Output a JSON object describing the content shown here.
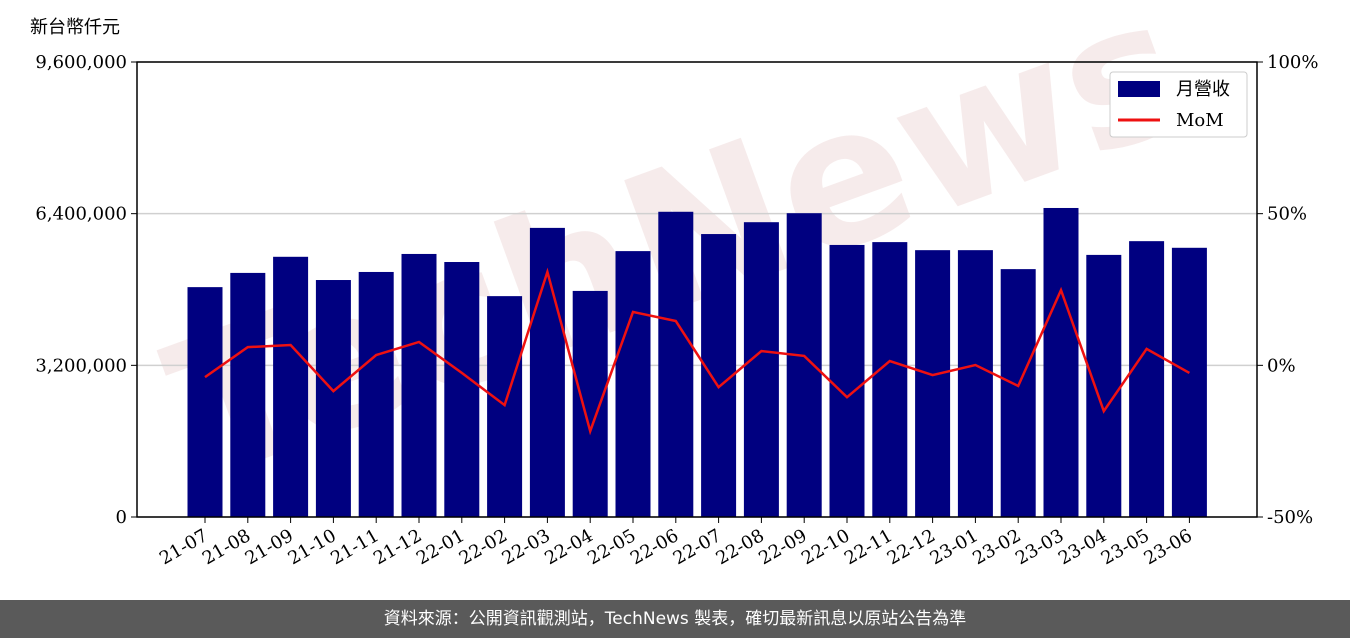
{
  "chart_data": {
    "type": "bar_line",
    "y_axis_label": "新台幣仟元",
    "watermark": "TechNews",
    "categories": [
      "21-07",
      "21-08",
      "21-09",
      "21-10",
      "21-11",
      "21-12",
      "22-01",
      "22-02",
      "22-03",
      "22-04",
      "22-05",
      "22-06",
      "22-07",
      "22-08",
      "22-09",
      "22-10",
      "22-11",
      "22-12",
      "23-01",
      "23-02",
      "23-03",
      "23-04",
      "23-05",
      "23-06"
    ],
    "series": [
      {
        "name": "月營收",
        "type": "bar",
        "color": "#000080",
        "values": [
          4850000,
          5150000,
          5490000,
          5000000,
          5170000,
          5550000,
          5380000,
          4660000,
          6100000,
          4770000,
          5610000,
          6440000,
          5970000,
          6220000,
          6410000,
          5740000,
          5800000,
          5630000,
          5630000,
          5230000,
          6520000,
          5530000,
          5820000,
          5680000
        ]
      },
      {
        "name": "MoM",
        "type": "line",
        "axis": "y2",
        "color": "#ee1111",
        "values": [
          -3.9,
          6.0,
          6.7,
          -8.5,
          3.4,
          7.7,
          -2.5,
          -13.1,
          30.8,
          -21.7,
          17.6,
          14.6,
          -7.2,
          4.7,
          3.1,
          -10.5,
          1.4,
          -3.2,
          0.1,
          -6.8,
          24.8,
          -15.1,
          5.4,
          -2.5
        ]
      }
    ],
    "ylim": [
      0,
      9600000
    ],
    "yticks": [
      0,
      {
        "value": 3200000,
        "label": "3,200,000"
      },
      {
        "value": 6400000,
        "label": "6,400,000"
      },
      {
        "value": 9600000,
        "label": "9,600,000"
      }
    ],
    "y2lim": [
      -50,
      100
    ],
    "y2ticks": [
      {
        "value": -50,
        "label": "-50%"
      },
      {
        "value": 0,
        "label": "0%"
      },
      {
        "value": 50,
        "label": "50%"
      },
      {
        "value": 100,
        "label": "100%"
      }
    ],
    "grid": true,
    "legend": "upper right"
  },
  "footer": "資料來源：公開資訊觀測站，TechNews 製表，確切最新訊息以原站公告為準"
}
